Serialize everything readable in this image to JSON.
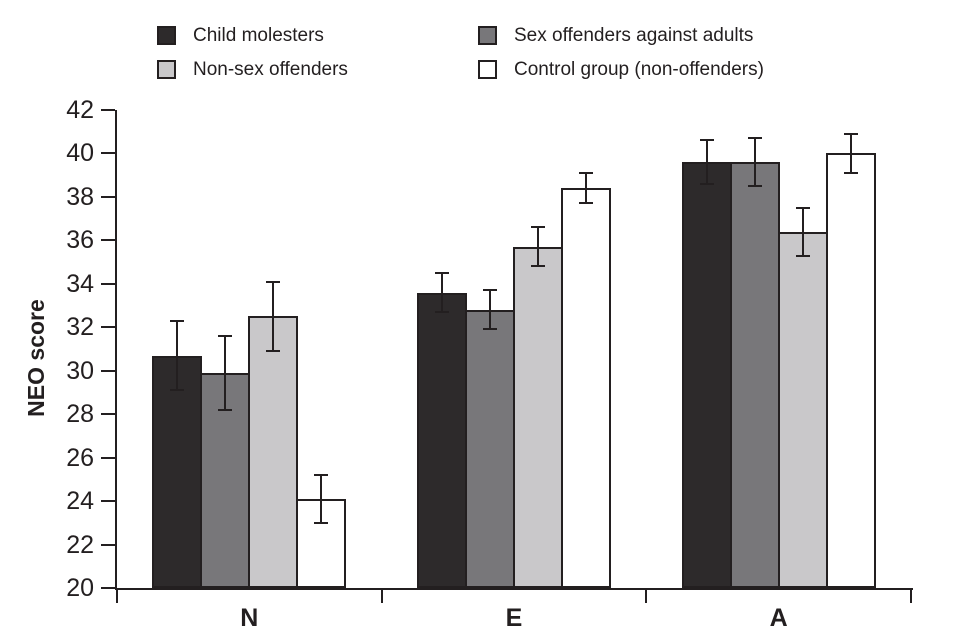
{
  "figure": {
    "background": "#ffffff",
    "axis_color": "#231f20",
    "text_color": "#231f20"
  },
  "chart_data": {
    "type": "bar",
    "title": "",
    "ylabel": "NEO score",
    "xlabel": "",
    "categories": [
      "N",
      "E",
      "A"
    ],
    "ylim": [
      20,
      42
    ],
    "ytick_step": 2,
    "yticks": [
      20,
      22,
      24,
      26,
      28,
      30,
      32,
      34,
      36,
      38,
      40,
      42
    ],
    "grid": false,
    "legend_position": "top",
    "error_bars": true,
    "series": [
      {
        "name": "Child molesters",
        "color": "#2d2a2b",
        "values": [
          30.7,
          33.6,
          39.6
        ],
        "errors": [
          1.6,
          0.9,
          1.0
        ]
      },
      {
        "name": "Sex offenders against adults",
        "color": "#78777a",
        "values": [
          29.9,
          32.8,
          39.6
        ],
        "errors": [
          1.7,
          0.9,
          1.1
        ]
      },
      {
        "name": "Non-sex offenders",
        "color": "#c9c8ca",
        "values": [
          32.5,
          35.7,
          36.4
        ],
        "errors": [
          1.6,
          0.9,
          1.1
        ]
      },
      {
        "name": "Control group (non-offenders)",
        "color": "#ffffff",
        "values": [
          24.1,
          38.4,
          40.0
        ],
        "errors": [
          1.1,
          0.7,
          0.9
        ]
      }
    ]
  }
}
